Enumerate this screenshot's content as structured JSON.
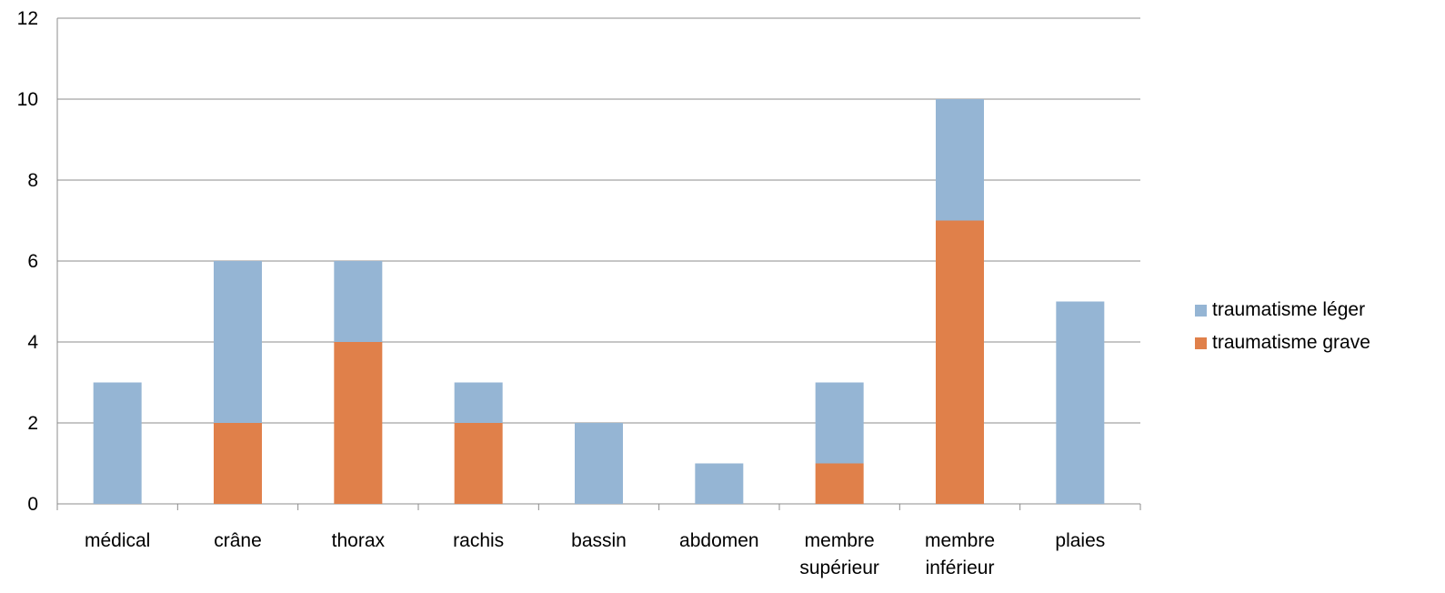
{
  "chart_data": {
    "type": "bar",
    "stacked": true,
    "title": "",
    "xlabel": "",
    "ylabel": "",
    "ylim": [
      0,
      12
    ],
    "yticks": [
      0,
      2,
      4,
      6,
      8,
      10,
      12
    ],
    "grid": true,
    "legend_position": "right",
    "categories": [
      [
        "médical"
      ],
      [
        "crâne"
      ],
      [
        "thorax"
      ],
      [
        "rachis"
      ],
      [
        "bassin"
      ],
      [
        "abdomen"
      ],
      [
        "membre",
        "supérieur"
      ],
      [
        "membre",
        "inférieur"
      ],
      [
        "plaies"
      ]
    ],
    "series": [
      {
        "name": "traumatisme grave",
        "color": "#E0804A",
        "values": [
          0,
          2,
          4,
          2,
          0,
          0,
          1,
          7,
          0
        ]
      },
      {
        "name": "traumatisme léger",
        "color": "#95B5D4",
        "values": [
          3,
          4,
          2,
          1,
          2,
          1,
          2,
          3,
          5
        ]
      }
    ],
    "legend_order": [
      1,
      0
    ]
  }
}
